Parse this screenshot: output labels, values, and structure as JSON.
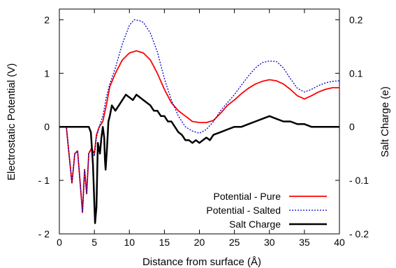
{
  "chart_data": {
    "type": "line",
    "title": "",
    "xlabel": "Distance from surface (Å)",
    "ylabel_left": "Electrostatic Potential (V)",
    "ylabel_right": "Salt Charge (e)",
    "xlim": [
      0,
      40
    ],
    "ylim_left": [
      -2,
      2.2
    ],
    "ylim_right": [
      -0.2,
      0.22
    ],
    "x_ticks": [
      0,
      5,
      10,
      15,
      20,
      25,
      30,
      35,
      40
    ],
    "x_tick_labels": [
      "0",
      "5",
      "10",
      "15",
      "20",
      "25",
      "30",
      "35",
      "40"
    ],
    "y_left_ticks": [
      -2,
      -1,
      0,
      1,
      2
    ],
    "y_left_tick_labels": [
      "- 2",
      "- 1",
      "0",
      "1",
      "2"
    ],
    "y_right_ticks": [
      -0.2,
      -0.1,
      0,
      0.1,
      0.2
    ],
    "y_right_tick_labels": [
      "- 0.2",
      "- 0.1",
      "0",
      "0.1",
      "0.2"
    ],
    "grid": false,
    "legend_position": "bottom-right",
    "series": [
      {
        "name": "Potential -  Pure",
        "axis": "left",
        "color": "#ff0000",
        "style": "solid",
        "points": [
          [
            0,
            0
          ],
          [
            1,
            0
          ],
          [
            1.3,
            -0.4
          ],
          [
            1.8,
            -1.05
          ],
          [
            2.2,
            -0.5
          ],
          [
            2.6,
            -0.45
          ],
          [
            3,
            -1.1
          ],
          [
            3.3,
            -1.6
          ],
          [
            3.6,
            -0.8
          ],
          [
            3.9,
            -1.25
          ],
          [
            4.2,
            -0.5
          ],
          [
            4.6,
            -0.4
          ],
          [
            5,
            -0.5
          ],
          [
            5.3,
            -0.15
          ],
          [
            5.7,
            0
          ],
          [
            6.2,
            0.1
          ],
          [
            6.7,
            0.4
          ],
          [
            7.2,
            0.75
          ],
          [
            8,
            1.0
          ],
          [
            9,
            1.25
          ],
          [
            10,
            1.38
          ],
          [
            11,
            1.42
          ],
          [
            12,
            1.38
          ],
          [
            13,
            1.25
          ],
          [
            14,
            1.0
          ],
          [
            15,
            0.7
          ],
          [
            16,
            0.45
          ],
          [
            17,
            0.3
          ],
          [
            18,
            0.2
          ],
          [
            19,
            0.1
          ],
          [
            20,
            0.08
          ],
          [
            21,
            0.08
          ],
          [
            22,
            0.12
          ],
          [
            23,
            0.25
          ],
          [
            24,
            0.4
          ],
          [
            25,
            0.5
          ],
          [
            26,
            0.62
          ],
          [
            27,
            0.72
          ],
          [
            28,
            0.8
          ],
          [
            29,
            0.85
          ],
          [
            30,
            0.88
          ],
          [
            31,
            0.86
          ],
          [
            32,
            0.8
          ],
          [
            33,
            0.7
          ],
          [
            34,
            0.58
          ],
          [
            35,
            0.52
          ],
          [
            36,
            0.58
          ],
          [
            37,
            0.65
          ],
          [
            38,
            0.7
          ],
          [
            39,
            0.73
          ],
          [
            40,
            0.73
          ]
        ]
      },
      {
        "name": "Potential -  Salted",
        "axis": "left",
        "color": "#0000cc",
        "style": "dotted",
        "points": [
          [
            0,
            0
          ],
          [
            1,
            0
          ],
          [
            1.3,
            -0.4
          ],
          [
            1.8,
            -1.05
          ],
          [
            2.2,
            -0.5
          ],
          [
            2.6,
            -0.45
          ],
          [
            3,
            -1.1
          ],
          [
            3.3,
            -1.6
          ],
          [
            3.6,
            -0.8
          ],
          [
            3.9,
            -1.25
          ],
          [
            4.2,
            -0.5
          ],
          [
            4.6,
            -0.4
          ],
          [
            5,
            -0.55
          ],
          [
            5.3,
            -0.2
          ],
          [
            5.7,
            0
          ],
          [
            6.2,
            0.2
          ],
          [
            6.7,
            0.55
          ],
          [
            7.2,
            0.8
          ],
          [
            8,
            1.1
          ],
          [
            9,
            1.55
          ],
          [
            10,
            1.9
          ],
          [
            10.7,
            2.0
          ],
          [
            11.5,
            1.98
          ],
          [
            12,
            1.95
          ],
          [
            13,
            1.75
          ],
          [
            14,
            1.4
          ],
          [
            15,
            0.9
          ],
          [
            16,
            0.5
          ],
          [
            17,
            0.2
          ],
          [
            18,
            0.0
          ],
          [
            19,
            -0.08
          ],
          [
            20,
            -0.12
          ],
          [
            21,
            -0.05
          ],
          [
            22,
            0.1
          ],
          [
            23,
            0.3
          ],
          [
            24,
            0.45
          ],
          [
            25,
            0.6
          ],
          [
            26,
            0.78
          ],
          [
            27,
            0.95
          ],
          [
            28,
            1.1
          ],
          [
            29,
            1.2
          ],
          [
            30,
            1.23
          ],
          [
            31,
            1.22
          ],
          [
            32,
            1.1
          ],
          [
            33,
            0.9
          ],
          [
            34,
            0.72
          ],
          [
            35,
            0.65
          ],
          [
            36,
            0.7
          ],
          [
            37,
            0.77
          ],
          [
            38,
            0.82
          ],
          [
            39,
            0.85
          ],
          [
            40,
            0.86
          ]
        ]
      },
      {
        "name": "Salt Charge",
        "axis": "right",
        "color": "#000000",
        "style": "solid",
        "points": [
          [
            0,
            0
          ],
          [
            4.2,
            0
          ],
          [
            4.5,
            -0.01
          ],
          [
            4.8,
            -0.07
          ],
          [
            5.1,
            -0.18
          ],
          [
            5.3,
            -0.15
          ],
          [
            5.5,
            -0.03
          ],
          [
            5.8,
            -0.05
          ],
          [
            6,
            -0.02
          ],
          [
            6.2,
            0.0
          ],
          [
            6.4,
            -0.02
          ],
          [
            6.5,
            -0.06
          ],
          [
            6.6,
            -0.08
          ],
          [
            6.8,
            -0.04
          ],
          [
            7,
            0.01
          ],
          [
            7.2,
            0.02
          ],
          [
            7.5,
            0.04
          ],
          [
            8,
            0.03
          ],
          [
            8.5,
            0.04
          ],
          [
            9,
            0.05
          ],
          [
            9.5,
            0.06
          ],
          [
            10,
            0.055
          ],
          [
            10.5,
            0.05
          ],
          [
            11,
            0.06
          ],
          [
            11.5,
            0.055
          ],
          [
            12,
            0.05
          ],
          [
            12.5,
            0.045
          ],
          [
            13,
            0.04
          ],
          [
            13.5,
            0.03
          ],
          [
            14,
            0.03
          ],
          [
            14.5,
            0.02
          ],
          [
            15,
            0.02
          ],
          [
            15.5,
            0.01
          ],
          [
            16,
            0.01
          ],
          [
            16.5,
            0.0
          ],
          [
            17,
            -0.01
          ],
          [
            17.5,
            -0.015
          ],
          [
            18,
            -0.025
          ],
          [
            18.5,
            -0.025
          ],
          [
            19,
            -0.03
          ],
          [
            19.5,
            -0.025
          ],
          [
            20,
            -0.03
          ],
          [
            20.5,
            -0.025
          ],
          [
            21,
            -0.02
          ],
          [
            21.5,
            -0.025
          ],
          [
            22,
            -0.015
          ],
          [
            23,
            -0.01
          ],
          [
            24,
            -0.005
          ],
          [
            25,
            0.0
          ],
          [
            26,
            0.0
          ],
          [
            27,
            0.005
          ],
          [
            28,
            0.01
          ],
          [
            29,
            0.015
          ],
          [
            30,
            0.02
          ],
          [
            31,
            0.015
          ],
          [
            32,
            0.01
          ],
          [
            33,
            0.01
          ],
          [
            34,
            0.005
          ],
          [
            35,
            0.005
          ],
          [
            36,
            0.0
          ],
          [
            40,
            0.0
          ]
        ]
      }
    ]
  }
}
